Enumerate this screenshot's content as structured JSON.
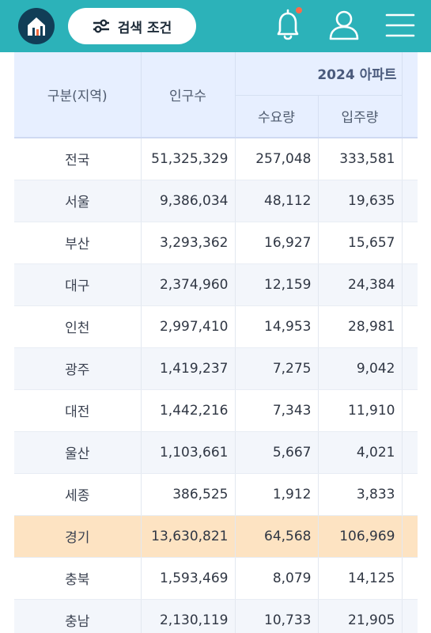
{
  "header": {
    "search_label": "검색 조건",
    "icons": [
      "home-icon",
      "sliders-icon",
      "bell-icon",
      "user-icon",
      "menu-icon"
    ],
    "colors": {
      "header_bg": "#2cb2b9",
      "home_bg": "#113e57",
      "notification_dot": "#ff6a4a"
    }
  },
  "table": {
    "headers": {
      "region": "구분(지역)",
      "population": "인구수",
      "group": "2024 아파트",
      "demand": "수요량",
      "supply": "입주량"
    },
    "rows": [
      {
        "region": "전국",
        "population": "51,325,329",
        "demand": "257,048",
        "supply": "333,581"
      },
      {
        "region": "서울",
        "population": "9,386,034",
        "demand": "48,112",
        "supply": "19,635"
      },
      {
        "region": "부산",
        "population": "3,293,362",
        "demand": "16,927",
        "supply": "15,657"
      },
      {
        "region": "대구",
        "population": "2,374,960",
        "demand": "12,159",
        "supply": "24,384"
      },
      {
        "region": "인천",
        "population": "2,997,410",
        "demand": "14,953",
        "supply": "28,981"
      },
      {
        "region": "광주",
        "population": "1,419,237",
        "demand": "7,275",
        "supply": "9,042"
      },
      {
        "region": "대전",
        "population": "1,442,216",
        "demand": "7,343",
        "supply": "11,910"
      },
      {
        "region": "울산",
        "population": "1,103,661",
        "demand": "5,667",
        "supply": "4,021"
      },
      {
        "region": "세종",
        "population": "386,525",
        "demand": "1,912",
        "supply": "3,833"
      },
      {
        "region": "경기",
        "population": "13,630,821",
        "demand": "64,568",
        "supply": "106,969",
        "highlighted": true
      },
      {
        "region": "충북",
        "population": "1,593,469",
        "demand": "8,079",
        "supply": "14,125"
      },
      {
        "region": "충남",
        "population": "2,130,119",
        "demand": "10,733",
        "supply": "21,905"
      }
    ],
    "colors": {
      "header_bg": "#e7efff",
      "highlight_row": "#fde3c2",
      "stripe_row": "#f3f6fb"
    }
  }
}
